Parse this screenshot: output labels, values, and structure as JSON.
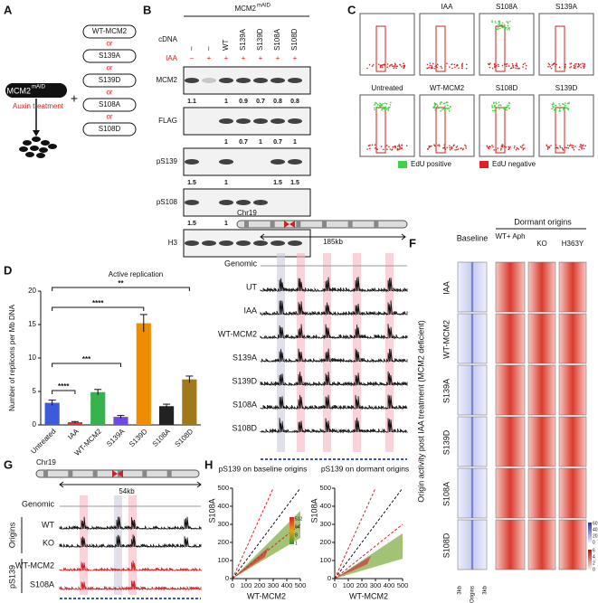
{
  "panel_labels": [
    "A",
    "B",
    "C",
    "D",
    "E",
    "F",
    "G",
    "H"
  ],
  "panel_a": {
    "strain": "MCM2",
    "superscript": "mAID",
    "treatment": "Auxin treatment",
    "plus": "+",
    "options": [
      "WT-MCM2",
      "S139A",
      "S139D",
      "S108A",
      "S108D"
    ],
    "separator": "or"
  },
  "panel_b": {
    "title": "MCM2",
    "superscript": "mAID",
    "row_labels": [
      "cDNA",
      "IAA"
    ],
    "cdna": [
      "–",
      "–",
      "WT",
      "S139A",
      "S139D",
      "S108A",
      "S108D"
    ],
    "iaa": [
      "–",
      "+",
      "+",
      "+",
      "+",
      "+",
      "+"
    ],
    "blots": [
      {
        "name": "MCM2",
        "quant": [
          1.1,
          null,
          1,
          0.9,
          0.7,
          0.8,
          0.8
        ]
      },
      {
        "name": "FLAG",
        "quant": [
          null,
          null,
          1,
          0.7,
          1,
          0.7,
          1
        ]
      },
      {
        "name": "pS139",
        "quant": [
          1.5,
          null,
          1,
          null,
          null,
          1.5,
          1.5
        ]
      },
      {
        "name": "pS108",
        "quant": [
          1.5,
          null,
          1,
          1.5,
          1.4,
          null,
          null
        ]
      },
      {
        "name": "H3"
      }
    ]
  },
  "panel_c": {
    "top_row": [
      "IAA",
      "S108A",
      "S139A"
    ],
    "bottom_row": [
      "Untreated",
      "WT-MCM2",
      "S108D",
      "S139D"
    ],
    "legend": [
      {
        "name": "EdU positive",
        "color": "#3fd43f"
      },
      {
        "name": "EdU negative",
        "color": "#e02020"
      }
    ]
  },
  "chart_data": {
    "type": "bar",
    "title": "Active replication",
    "y_label": "Number of replicons per Mb DNA",
    "categories": [
      "Untreated",
      "IAA",
      "WT-MCM2",
      "S139A",
      "S139D",
      "S108A",
      "S108D"
    ],
    "values": [
      3.3,
      0.4,
      4.9,
      1.2,
      15.2,
      2.8,
      6.8
    ],
    "errors": [
      0.4,
      0.1,
      0.4,
      0.2,
      1.3,
      0.3,
      0.5
    ],
    "colors": [
      "#3b5bdb",
      "#e03131",
      "#37b24d",
      "#7048e8",
      "#f08c00",
      "#222222",
      "#a0791a"
    ],
    "ylim": [
      0,
      20
    ],
    "yticks": [
      0,
      5,
      10,
      15,
      20
    ],
    "significance": [
      "****",
      "***",
      "****",
      "**"
    ]
  },
  "panel_e": {
    "chromosome": "Chr19",
    "span": "185kb",
    "tracks": [
      "Genomic",
      "UT",
      "IAA",
      "WT-MCM2",
      "S139A",
      "S139D",
      "S108A",
      "S108D"
    ]
  },
  "panel_f": {
    "baseline": "Baseline",
    "dormant": "Dormant origins",
    "columns": [
      "WT+ Aph",
      "KO",
      "H363Y"
    ],
    "rows": [
      "IAA",
      "WT-MCM2",
      "S139A",
      "S139D",
      "S108A",
      "S108D"
    ],
    "y_title": "Origin activity post IAA treatment (MCM2 deficient)",
    "x_labels": [
      "3kb",
      "Origins",
      "3kb"
    ],
    "colorbar_blue": [
      60,
      40,
      20,
      0
    ],
    "colorbar_red": [
      6,
      4,
      2,
      0
    ]
  },
  "panel_g": {
    "chromosome": "Chr19",
    "span": "54kb",
    "genomic": "Genomic",
    "origins": "Origins",
    "origin_tracks": [
      "WT",
      "KO"
    ],
    "ps139": "pS139",
    "ps139_tracks": [
      "WT-MCM2",
      "S108A"
    ]
  },
  "panel_h": {
    "titles": [
      "pS139 on baseline origins",
      "pS139 on dormant origins"
    ],
    "x_label": "WT-MCM2",
    "y_label": "S108A",
    "ticks": [
      0,
      100,
      200,
      300,
      400,
      500
    ],
    "colorbar": [
      512,
      64,
      8,
      1
    ]
  }
}
